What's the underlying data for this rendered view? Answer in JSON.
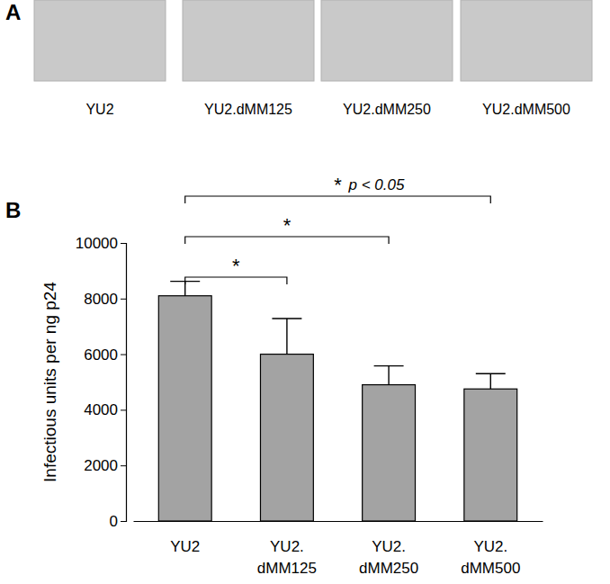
{
  "chart_data": {
    "type": "bar",
    "y_label": "Infectious units per ng p24",
    "categories": [
      "YU2",
      "YU2.\ndMM125",
      "YU2.\ndMM250",
      "YU2.\ndMM500"
    ],
    "values": [
      8100,
      6000,
      4900,
      4750
    ],
    "errors": [
      520,
      1280,
      680,
      550
    ],
    "color": "#a3a3a3",
    "ylim": [
      0,
      10000
    ],
    "yticks": [
      0,
      2000,
      4000,
      6000,
      8000,
      10000
    ],
    "grid": false,
    "comparisons": [
      {
        "groups": [
          0,
          1
        ],
        "label": "*"
      },
      {
        "groups": [
          0,
          2
        ],
        "label": "*"
      },
      {
        "groups": [
          0,
          3
        ],
        "label": "*",
        "note": "p < 0.05"
      }
    ]
  },
  "figure": {
    "panel_labels": [
      "A",
      "B"
    ],
    "images": [
      "YU2",
      "YU2.dMM125",
      "YU2.dMM250",
      "YU2.dMM500"
    ]
  }
}
